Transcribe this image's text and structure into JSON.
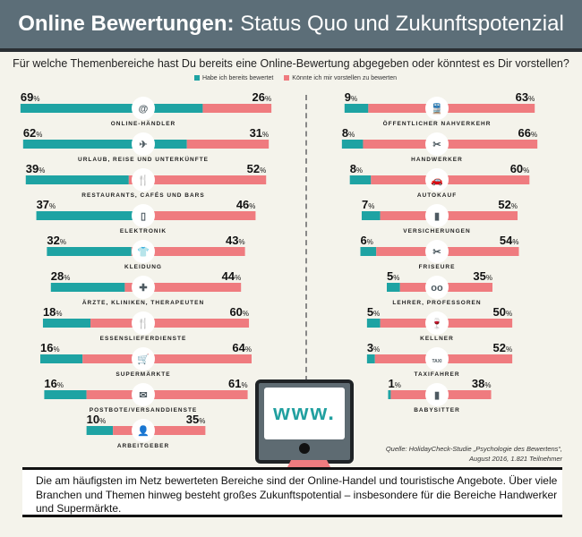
{
  "header": {
    "title_bold": "Online Bewertungen:",
    "title_rest": "Status Quo und Zukunftspotenzial"
  },
  "question": "Für welche Themenbereiche hast Du bereits eine Online-Bewertung abgegeben oder könntest es Dir vorstellen?",
  "colors": {
    "rated": "#1ea3a3",
    "could": "#ef7b7f",
    "header": "#5c6e78",
    "background": "#f4f3eb"
  },
  "chart_data": {
    "type": "bar",
    "orientation": "horizontal stacked",
    "unit": "%",
    "series": [
      {
        "name": "Habe ich bereits bewertet"
      },
      {
        "name": "Könnte ich mir vorstellen zu bewerten"
      }
    ],
    "left": [
      {
        "label": "ONLINE-HÄNDLER",
        "rated": 69,
        "could": 26,
        "icon": "at-icon"
      },
      {
        "label": "URLAUB, REISE UND UNTERKÜNFTE",
        "rated": 62,
        "could": 31,
        "icon": "airplane-icon"
      },
      {
        "label": "RESTAURANTS, CAFÉS UND BARS",
        "rated": 39,
        "could": 52,
        "icon": "cutlery-icon"
      },
      {
        "label": "ELEKTRONIK",
        "rated": 37,
        "could": 46,
        "icon": "phone-icon"
      },
      {
        "label": "KLEIDUNG",
        "rated": 32,
        "could": 43,
        "icon": "shirt-icon"
      },
      {
        "label": "ÄRZTE, KLINIKEN, THERAPEUTEN",
        "rated": 28,
        "could": 44,
        "icon": "medical-cross-icon"
      },
      {
        "label": "ESSENSLIEFERDIENSTE",
        "rated": 18,
        "could": 60,
        "icon": "cutlery-icon"
      },
      {
        "label": "SUPERMÄRKTE",
        "rated": 16,
        "could": 64,
        "icon": "cart-icon"
      },
      {
        "label": "POSTBOTE/VERSANDDIENSTE",
        "rated": 16,
        "could": 61,
        "icon": "envelope-icon"
      },
      {
        "label": "ARBEITGEBER",
        "rated": 10,
        "could": 35,
        "icon": "person-icon"
      }
    ],
    "right": [
      {
        "label": "ÖFFENTLICHER NAHVERKEHR",
        "rated": 9,
        "could": 63,
        "icon": "train-icon"
      },
      {
        "label": "HANDWERKER",
        "rated": 8,
        "could": 66,
        "icon": "tools-icon"
      },
      {
        "label": "AUTOKAUF",
        "rated": 8,
        "could": 60,
        "icon": "car-icon"
      },
      {
        "label": "VERSICHERUNGEN",
        "rated": 7,
        "could": 52,
        "icon": "document-icon"
      },
      {
        "label": "FRISEURE",
        "rated": 6,
        "could": 54,
        "icon": "scissors-icon"
      },
      {
        "label": "LEHRER, PROFESSOREN",
        "rated": 5,
        "could": 35,
        "icon": "glasses-icon"
      },
      {
        "label": "KELLNER",
        "rated": 5,
        "could": 50,
        "icon": "wine-icon"
      },
      {
        "label": "TAXIFAHRER",
        "rated": 3,
        "could": 52,
        "icon": "taxi-icon"
      },
      {
        "label": "BABYSITTER",
        "rated": 1,
        "could": 38,
        "icon": "baby-bottle-icon"
      }
    ]
  },
  "icon_glyphs": {
    "at-icon": "@",
    "airplane-icon": "✈",
    "cutlery-icon": "🍴",
    "phone-icon": "▯",
    "shirt-icon": "👕",
    "medical-cross-icon": "✚",
    "cart-icon": "🛒",
    "envelope-icon": "✉",
    "person-icon": "👤",
    "train-icon": "🚆",
    "tools-icon": "✂",
    "car-icon": "🚗",
    "document-icon": "▮",
    "scissors-icon": "✂",
    "glasses-icon": "oo",
    "wine-icon": "🍷",
    "taxi-icon": "TAXI",
    "baby-bottle-icon": "▮"
  },
  "monitor": {
    "screen_text": "www."
  },
  "source": "Quelle: HolidayCheck-Studie „Psychologie des Bewertens“, August 2016, 1.821 Teilnehmer",
  "summary": "Die am häufigsten im Netz bewerteten Bereiche sind der Online-Handel und touristische Angebote. Über viele Branchen und Themen hinweg besteht großes Zukunftspotential – insbesondere für die Bereiche Handwerker und Supermärkte."
}
